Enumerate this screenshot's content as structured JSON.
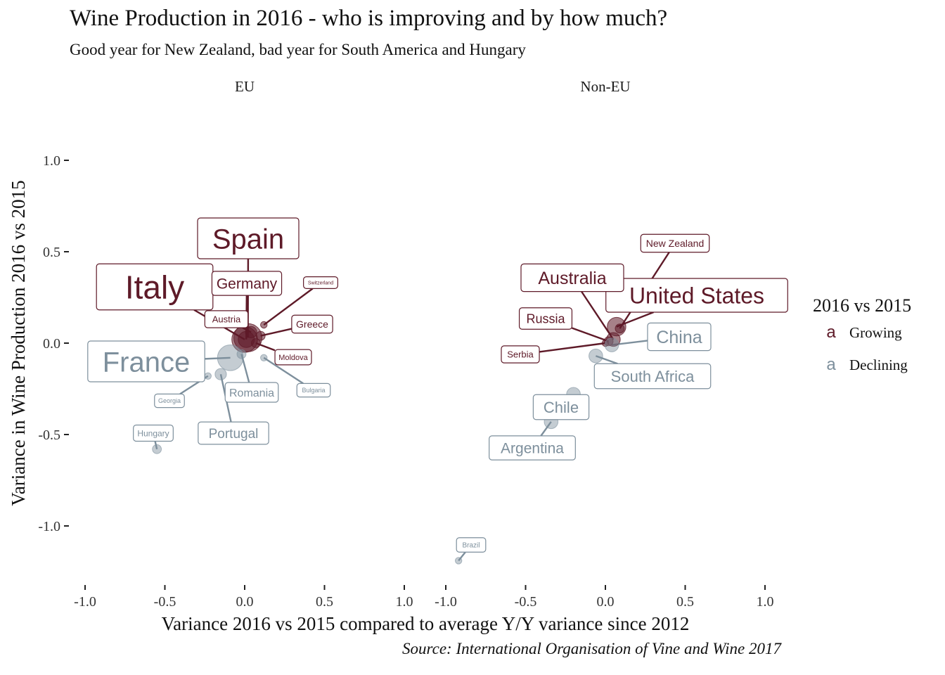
{
  "title": "Wine Production in 2016 - who is improving and by how much?",
  "subtitle": "Good year for New Zealand, bad year for South America and Hungary",
  "caption": "Source: International Organisation of Vine and Wine 2017",
  "legend": {
    "title": "2016 vs 2015",
    "key_glyph": "a",
    "items": [
      {
        "label": "Growing",
        "color": "#5e1a28"
      },
      {
        "label": "Declining",
        "color": "#7d8f9c"
      }
    ]
  },
  "chart_data": {
    "type": "scatter",
    "xlabel": "Variance 2016 vs 2015 compared to average Y/Y variance since 2012",
    "ylabel": "Variance in Wine Production 2016 vs 2015",
    "xlim": [
      -1.0,
      1.0
    ],
    "ylim": [
      -1.25,
      1.0
    ],
    "x_ticks": [
      "-1.0",
      "-0.5",
      "0.0",
      "0.5",
      "1.0"
    ],
    "y_ticks": [
      "1.0",
      "0.5",
      "0.0",
      "-0.5",
      "-1.0"
    ],
    "grid": false,
    "legend_position": "right",
    "colors": {
      "Growing": "#5e1a28",
      "Declining": "#7d8f9c"
    },
    "panels": [
      {
        "name": "EU",
        "points": [
          {
            "label": "Spain",
            "x": 0.02,
            "y": 0.03,
            "status": "Growing",
            "size": 10
          },
          {
            "label": "Italy",
            "x": 0.0,
            "y": 0.02,
            "status": "Growing",
            "size": 9
          },
          {
            "label": "Germany",
            "x": 0.01,
            "y": 0.02,
            "status": "Growing",
            "size": 5
          },
          {
            "label": "Austria",
            "x": 0.04,
            "y": 0.06,
            "status": "Growing",
            "size": 3
          },
          {
            "label": "Switzerland",
            "x": 0.12,
            "y": 0.1,
            "status": "Growing",
            "size": 1
          },
          {
            "label": "Greece",
            "x": 0.1,
            "y": 0.04,
            "status": "Growing",
            "size": 2
          },
          {
            "label": "Moldova",
            "x": 0.07,
            "y": 0.0,
            "status": "Growing",
            "size": 2
          },
          {
            "label": "France",
            "x": -0.09,
            "y": -0.08,
            "status": "Declining",
            "size": 9
          },
          {
            "label": "Romania",
            "x": -0.02,
            "y": -0.06,
            "status": "Declining",
            "size": 2
          },
          {
            "label": "Bulgaria",
            "x": 0.12,
            "y": -0.08,
            "status": "Declining",
            "size": 1
          },
          {
            "label": "Georgia",
            "x": -0.23,
            "y": -0.18,
            "status": "Declining",
            "size": 1
          },
          {
            "label": "Portugal",
            "x": -0.15,
            "y": -0.17,
            "status": "Declining",
            "size": 3
          },
          {
            "label": "Hungary",
            "x": -0.55,
            "y": -0.58,
            "status": "Declining",
            "size": 2
          }
        ]
      },
      {
        "name": "Non-EU",
        "points": [
          {
            "label": "United States",
            "x": 0.07,
            "y": 0.09,
            "status": "Growing",
            "size": 6
          },
          {
            "label": "New Zealand",
            "x": 0.09,
            "y": 0.08,
            "status": "Growing",
            "size": 2
          },
          {
            "label": "Australia",
            "x": 0.05,
            "y": 0.02,
            "status": "Growing",
            "size": 4
          },
          {
            "label": "Russia",
            "x": 0.02,
            "y": 0.01,
            "status": "Growing",
            "size": 2
          },
          {
            "label": "Serbia",
            "x": 0.0,
            "y": 0.0,
            "status": "Growing",
            "size": 1
          },
          {
            "label": "China",
            "x": 0.04,
            "y": -0.01,
            "status": "Declining",
            "size": 4
          },
          {
            "label": "South Africa",
            "x": -0.06,
            "y": -0.07,
            "status": "Declining",
            "size": 4
          },
          {
            "label": "Chile",
            "x": -0.2,
            "y": -0.28,
            "status": "Declining",
            "size": 4
          },
          {
            "label": "Argentina",
            "x": -0.34,
            "y": -0.43,
            "status": "Declining",
            "size": 4
          },
          {
            "label": "Brazil",
            "x": -0.92,
            "y": -1.19,
            "status": "Declining",
            "size": 1
          }
        ]
      }
    ]
  }
}
